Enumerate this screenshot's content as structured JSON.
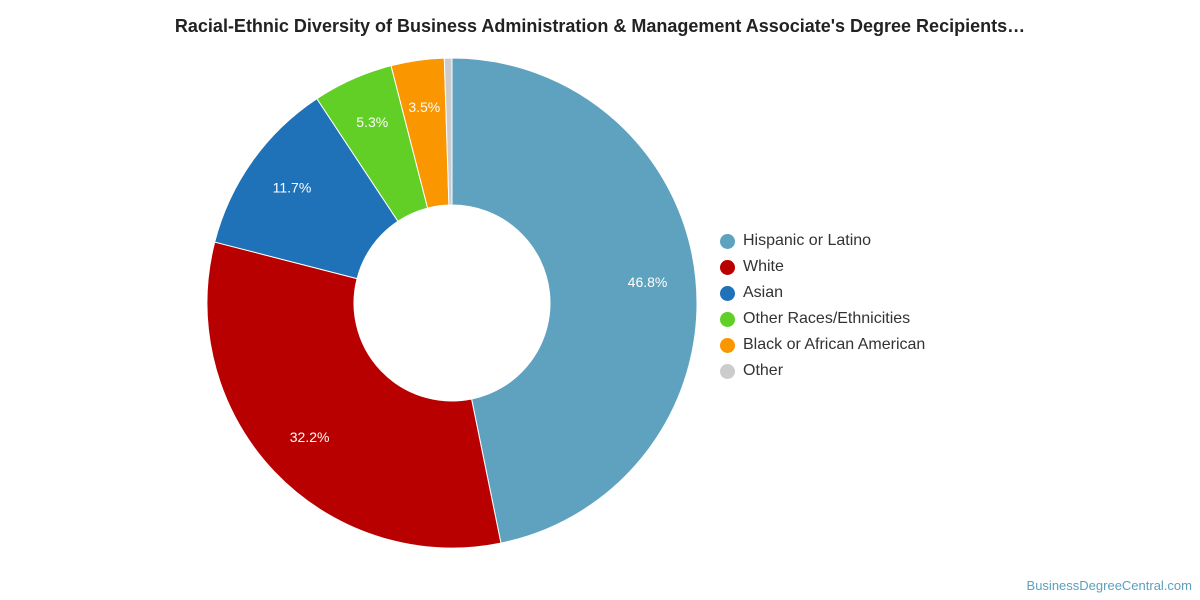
{
  "chart_data": {
    "type": "pie",
    "title": "Racial-Ethnic Diversity of Business Administration & Management Associate's Degree Recipients…",
    "series": [
      {
        "label": "Hispanic or Latino",
        "value": 46.8,
        "display": "46.8%",
        "color": "#5fa2c0"
      },
      {
        "label": "White",
        "value": 32.2,
        "display": "32.2%",
        "color": "#b90000"
      },
      {
        "label": "Asian",
        "value": 11.7,
        "display": "11.7%",
        "color": "#1f72b8"
      },
      {
        "label": "Other Races/Ethnicities",
        "value": 5.3,
        "display": "5.3%",
        "color": "#62cf26"
      },
      {
        "label": "Black or African American",
        "value": 3.5,
        "display": "3.5%",
        "color": "#f99600"
      },
      {
        "label": "Other",
        "value": 0.5,
        "display": "",
        "color": "#cccccc"
      }
    ],
    "legend_position": "right"
  },
  "source": "BusinessDegreeCentral.com"
}
